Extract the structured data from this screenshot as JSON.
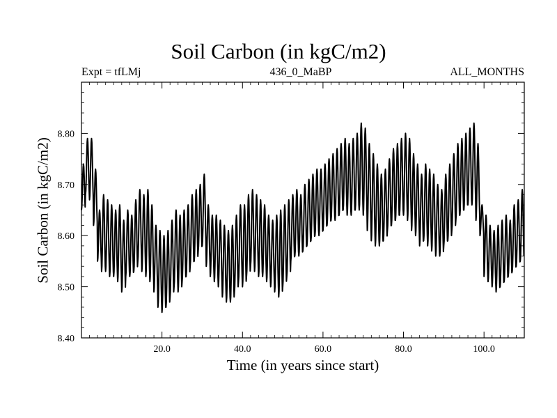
{
  "chart_data": {
    "type": "line",
    "title": "Soil Carbon (in kgC/m2)",
    "subtitle_left": "Expt = tfLMj",
    "subtitle_center": "436_0_MaBP",
    "subtitle_right": "ALL_MONTHS",
    "xlabel": "Time (in years since start)",
    "ylabel": "Soil Carbon (in kgC/m2)",
    "xlim": [
      0,
      110
    ],
    "ylim": [
      8.4,
      8.9
    ],
    "xticks": [
      20,
      40,
      60,
      80,
      100
    ],
    "xtick_labels": [
      "20.0",
      "40.0",
      "60.0",
      "80.0",
      "100.0"
    ],
    "yticks": [
      8.4,
      8.5,
      8.6,
      8.7,
      8.8
    ],
    "ytick_labels": [
      "8.40",
      "8.50",
      "8.60",
      "8.70",
      "8.80"
    ],
    "grid": false,
    "series": [
      {
        "name": "Soil Carbon",
        "description": "annual cycle: each year has a maximum and a minimum",
        "years": [
          0,
          1,
          2,
          3,
          4,
          5,
          6,
          7,
          8,
          9,
          10,
          11,
          12,
          13,
          14,
          15,
          16,
          17,
          18,
          19,
          20,
          21,
          22,
          23,
          24,
          25,
          26,
          27,
          28,
          29,
          30,
          31,
          32,
          33,
          34,
          35,
          36,
          37,
          38,
          39,
          40,
          41,
          42,
          43,
          44,
          45,
          46,
          47,
          48,
          49,
          50,
          51,
          52,
          53,
          54,
          55,
          56,
          57,
          58,
          59,
          60,
          61,
          62,
          63,
          64,
          65,
          66,
          67,
          68,
          69,
          70,
          71,
          72,
          73,
          74,
          75,
          76,
          77,
          78,
          79,
          80,
          81,
          82,
          83,
          84,
          85,
          86,
          87,
          88,
          89,
          90,
          91,
          92,
          93,
          94,
          95,
          96,
          97,
          98,
          99,
          100,
          101,
          102,
          103,
          104,
          105,
          106,
          107,
          108,
          109
        ],
        "annual_max": [
          8.74,
          8.79,
          8.79,
          8.73,
          8.65,
          8.68,
          8.67,
          8.66,
          8.65,
          8.66,
          8.63,
          8.65,
          8.64,
          8.67,
          8.69,
          8.68,
          8.69,
          8.66,
          8.62,
          8.61,
          8.6,
          8.61,
          8.63,
          8.65,
          8.64,
          8.65,
          8.66,
          8.68,
          8.69,
          8.7,
          8.72,
          8.66,
          8.64,
          8.64,
          8.63,
          8.62,
          8.61,
          8.62,
          8.64,
          8.66,
          8.66,
          8.68,
          8.69,
          8.68,
          8.67,
          8.66,
          8.64,
          8.63,
          8.64,
          8.65,
          8.66,
          8.67,
          8.68,
          8.69,
          8.68,
          8.7,
          8.71,
          8.72,
          8.73,
          8.73,
          8.74,
          8.75,
          8.76,
          8.77,
          8.78,
          8.79,
          8.78,
          8.79,
          8.8,
          8.82,
          8.81,
          8.78,
          8.76,
          8.74,
          8.72,
          8.73,
          8.75,
          8.77,
          8.78,
          8.79,
          8.8,
          8.79,
          8.76,
          8.74,
          8.72,
          8.74,
          8.73,
          8.72,
          8.7,
          8.69,
          8.72,
          8.74,
          8.76,
          8.78,
          8.79,
          8.8,
          8.81,
          8.82,
          8.78,
          8.66,
          8.64,
          8.62,
          8.61,
          8.62,
          8.63,
          8.64,
          8.63,
          8.66,
          8.67,
          8.69
        ],
        "annual_min": [
          8.65,
          8.68,
          8.67,
          8.62,
          8.55,
          8.53,
          8.53,
          8.52,
          8.52,
          8.51,
          8.49,
          8.52,
          8.52,
          8.53,
          8.55,
          8.53,
          8.52,
          8.51,
          8.49,
          8.46,
          8.45,
          8.46,
          8.48,
          8.5,
          8.49,
          8.51,
          8.52,
          8.54,
          8.55,
          8.57,
          8.58,
          8.54,
          8.52,
          8.51,
          8.5,
          8.48,
          8.47,
          8.47,
          8.49,
          8.51,
          8.5,
          8.52,
          8.54,
          8.53,
          8.52,
          8.52,
          8.51,
          8.5,
          8.49,
          8.48,
          8.5,
          8.52,
          8.55,
          8.56,
          8.56,
          8.57,
          8.58,
          8.59,
          8.6,
          8.6,
          8.61,
          8.62,
          8.63,
          8.63,
          8.64,
          8.65,
          8.64,
          8.64,
          8.65,
          8.65,
          8.64,
          8.61,
          8.59,
          8.58,
          8.58,
          8.59,
          8.61,
          8.62,
          8.63,
          8.64,
          8.64,
          8.63,
          8.61,
          8.6,
          8.58,
          8.59,
          8.58,
          8.57,
          8.56,
          8.56,
          8.58,
          8.59,
          8.61,
          8.63,
          8.64,
          8.65,
          8.66,
          8.66,
          8.63,
          8.6,
          8.52,
          8.51,
          8.5,
          8.49,
          8.5,
          8.51,
          8.52,
          8.53,
          8.54,
          8.55
        ]
      }
    ]
  }
}
